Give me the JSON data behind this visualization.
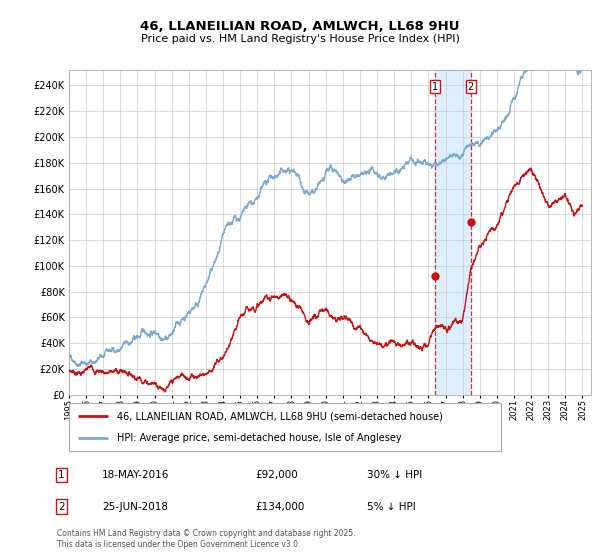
{
  "title1": "46, LLANEILIAN ROAD, AMLWCH, LL68 9HU",
  "title2": "Price paid vs. HM Land Registry's House Price Index (HPI)",
  "ytick_vals": [
    0,
    20000,
    40000,
    60000,
    80000,
    100000,
    120000,
    140000,
    160000,
    180000,
    200000,
    220000,
    240000
  ],
  "ylim": [
    0,
    252000
  ],
  "xlim_start": 1995.0,
  "xlim_end": 2025.5,
  "hpi_color": "#7aaad4",
  "price_color": "#cc1111",
  "marker1_x": 2016.37,
  "marker2_x": 2018.48,
  "marker1_price": 92000,
  "marker2_price": 134000,
  "shade_color": "#ddeeff",
  "legend_line1": "46, LLANEILIAN ROAD, AMLWCH, LL68 9HU (semi-detached house)",
  "legend_line2": "HPI: Average price, semi-detached house, Isle of Anglesey",
  "footer": "Contains HM Land Registry data © Crown copyright and database right 2025.\nThis data is licensed under the Open Government Licence v3.0.",
  "xtick_years": [
    1995,
    1996,
    1997,
    1998,
    1999,
    2000,
    2001,
    2002,
    2003,
    2004,
    2005,
    2006,
    2007,
    2008,
    2009,
    2010,
    2011,
    2012,
    2013,
    2014,
    2015,
    2016,
    2017,
    2018,
    2019,
    2020,
    2021,
    2022,
    2023,
    2024,
    2025
  ]
}
